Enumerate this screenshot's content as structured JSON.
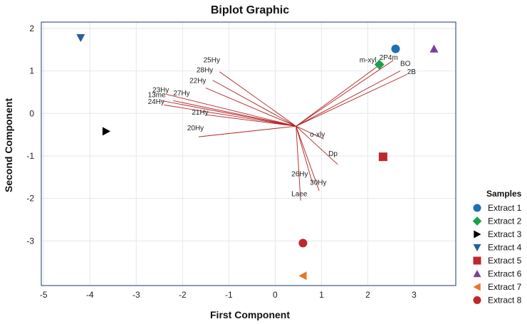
{
  "chart_data": {
    "type": "scatter",
    "title": "Biplot Graphic",
    "xlabel": "First Component",
    "ylabel": "Second Component",
    "xlim": [
      -5.05,
      3.9
    ],
    "ylim": [
      -4.05,
      2.15
    ],
    "x_ticks": [
      "-5",
      "-4",
      "-3",
      "-2",
      "-1",
      "0",
      "1",
      "2",
      "3"
    ],
    "y_ticks": [
      "2",
      "1",
      "0",
      "-1",
      "-2",
      "-3"
    ],
    "legend_title": "Samples",
    "colors": {
      "blue": "#1f6fb4",
      "green": "#17a34a",
      "black": "#000000",
      "navy": "#2a5d9f",
      "red": "#c0272d",
      "purple": "#7b3f98",
      "orange": "#e8762c",
      "crimson": "#c0272d",
      "loading_line": "#b22222",
      "frame": "#1a3a6b",
      "grid": "#e3e7ec"
    },
    "series": [
      {
        "name": "Extract 1",
        "marker": "circle",
        "color": "#1f6fb4",
        "x": 2.6,
        "y": 1.52
      },
      {
        "name": "Extract 2",
        "marker": "diamond",
        "color": "#17a34a",
        "x": 2.25,
        "y": 1.15
      },
      {
        "name": "Extract 3",
        "marker": "triangle-right",
        "color": "#000000",
        "x": -3.65,
        "y": -0.42
      },
      {
        "name": "Extract 4",
        "marker": "triangle-down",
        "color": "#2a5d9f",
        "x": -4.2,
        "y": 1.78
      },
      {
        "name": "Extract 5",
        "marker": "square",
        "color": "#c0272d",
        "x": 2.33,
        "y": -1.02
      },
      {
        "name": "Extract 6",
        "marker": "triangle-up",
        "color": "#7b3f98",
        "x": 3.43,
        "y": 1.52
      },
      {
        "name": "Extract 7",
        "marker": "triangle-left",
        "color": "#e8762c",
        "x": 0.6,
        "y": -3.82
      },
      {
        "name": "Extract 8",
        "marker": "circle",
        "color": "#c0272d",
        "x": 0.6,
        "y": -3.05
      }
    ],
    "loadings_origin": [
      0.45,
      -0.3
    ],
    "loadings": [
      {
        "label": "m-xyl",
        "x": 2.2,
        "y": 1.1,
        "lx": 1.82,
        "ly": 1.2
      },
      {
        "label": "2P4m",
        "x": 2.55,
        "y": 1.25,
        "lx": 2.25,
        "ly": 1.26
      },
      {
        "label": "BO",
        "x": 2.7,
        "y": 1.0,
        "lx": 2.7,
        "ly": 1.12
      },
      {
        "label": "2B",
        "x": 2.85,
        "y": 0.92,
        "lx": 2.85,
        "ly": 0.93
      },
      {
        "label": "25Hy",
        "x": -1.2,
        "y": 0.98,
        "lx": -1.55,
        "ly": 1.2
      },
      {
        "label": "28Hy",
        "x": -1.35,
        "y": 0.78,
        "lx": -1.7,
        "ly": 0.97
      },
      {
        "label": "22Hy",
        "x": -1.5,
        "y": 0.6,
        "lx": -1.85,
        "ly": 0.72
      },
      {
        "label": "23Hy",
        "x": -2.35,
        "y": 0.45,
        "lx": -2.65,
        "ly": 0.5
      },
      {
        "label": "13me",
        "x": -2.45,
        "y": 0.3,
        "lx": -2.75,
        "ly": 0.38
      },
      {
        "label": "27Hy",
        "x": -2.2,
        "y": 0.3,
        "lx": -2.2,
        "ly": 0.42
      },
      {
        "label": "24Hy",
        "x": -2.4,
        "y": 0.2,
        "lx": -2.75,
        "ly": 0.22
      },
      {
        "label": "21Hy",
        "x": -1.5,
        "y": -0.03,
        "lx": -1.8,
        "ly": -0.03
      },
      {
        "label": "20Hy",
        "x": -1.65,
        "y": -0.55,
        "lx": -1.9,
        "ly": -0.4
      },
      {
        "label": "o-xly",
        "x": 1.05,
        "y": -0.6,
        "lx": 0.75,
        "ly": -0.55
      },
      {
        "label": "Dp",
        "x": 1.35,
        "y": -1.2,
        "lx": 1.15,
        "ly": -1.0
      },
      {
        "label": "26Hy",
        "x": 0.8,
        "y": -1.62,
        "lx": 0.35,
        "ly": -1.48
      },
      {
        "label": "30Hy",
        "x": 0.95,
        "y": -1.82,
        "lx": 0.75,
        "ly": -1.68
      },
      {
        "label": "Laee",
        "x": 0.55,
        "y": -2.05,
        "lx": 0.35,
        "ly": -1.95
      }
    ]
  }
}
